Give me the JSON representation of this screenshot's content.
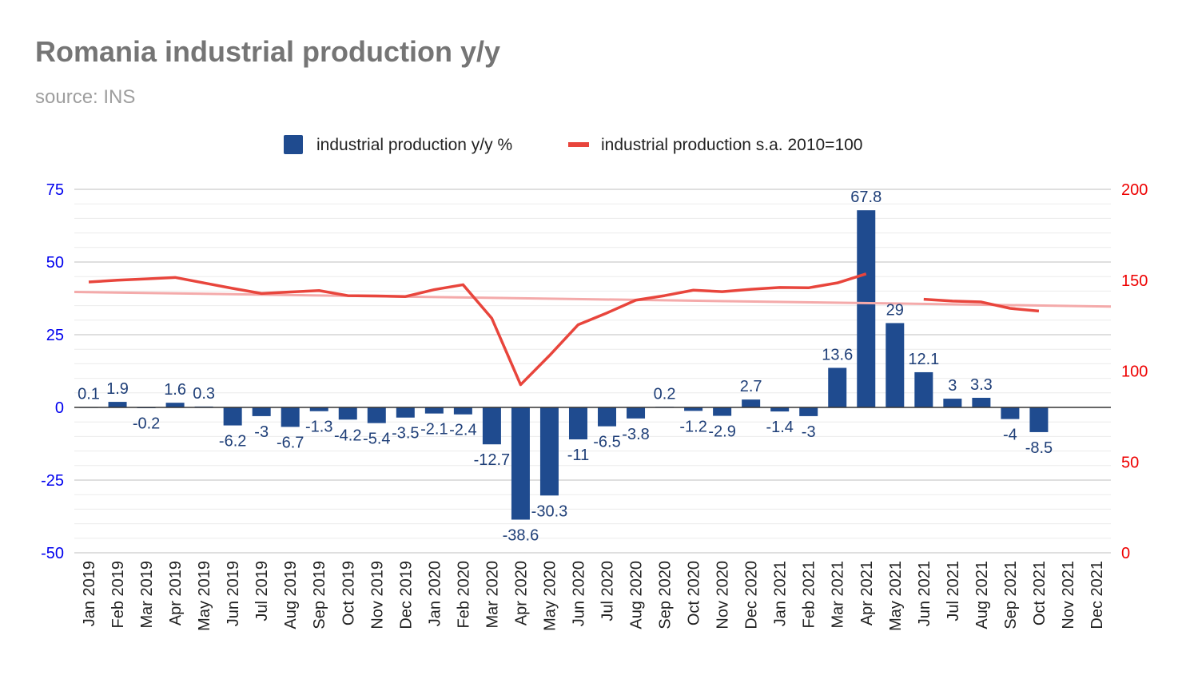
{
  "title": "Romania industrial production y/y",
  "subtitle": "source: INS",
  "chart_data": {
    "type": "bar",
    "categories": [
      "Jan 2019",
      "Feb 2019",
      "Mar 2019",
      "Apr 2019",
      "May 2019",
      "Jun 2019",
      "Jul 2019",
      "Aug 2019",
      "Sep 2019",
      "Oct 2019",
      "Nov 2019",
      "Dec 2019",
      "Jan 2020",
      "Feb 2020",
      "Mar 2020",
      "Apr 2020",
      "May 2020",
      "Jun 2020",
      "Jul 2020",
      "Aug 2020",
      "Sep 2020",
      "Oct 2020",
      "Nov 2020",
      "Dec 2020",
      "Jan 2021",
      "Feb 2021",
      "Mar 2021",
      "Apr 2021",
      "May 2021",
      "Jun 2021",
      "Jul 2021",
      "Aug 2021",
      "Sep 2021",
      "Oct 2021",
      "Nov 2021",
      "Dec 2021"
    ],
    "series": [
      {
        "name": "industrial production y/y %",
        "type": "bar",
        "axis": "left",
        "color": "#1f4b8f",
        "values": [
          0.1,
          1.9,
          -0.2,
          1.6,
          0.3,
          -6.2,
          -3,
          -6.7,
          -1.3,
          -4.2,
          -5.4,
          -3.5,
          -2.1,
          -2.4,
          -12.7,
          -38.6,
          -30.3,
          -11,
          -6.5,
          -3.8,
          0.2,
          -1.2,
          -2.9,
          2.7,
          -1.4,
          -3,
          13.6,
          67.8,
          29,
          12.1,
          3,
          3.3,
          -4,
          -8.5,
          null,
          null
        ]
      },
      {
        "name": "industrial production s.a. 2010=100",
        "type": "line",
        "axis": "right",
        "color": "#e8453c",
        "values": [
          149,
          150,
          150.7,
          151.5,
          148.5,
          145.5,
          142.7,
          143.5,
          144.3,
          141.5,
          141.3,
          141,
          144.8,
          147.5,
          129,
          92.5,
          108.5,
          125.5,
          132,
          139,
          141.5,
          144.5,
          143.7,
          145,
          146,
          145.8,
          148.5,
          153.5,
          null,
          139.5,
          138.5,
          138,
          134.5,
          133,
          null,
          null
        ]
      }
    ],
    "trendline": {
      "series": "industrial production s.a. 2010=100",
      "start": 143.5,
      "end": 135.5,
      "color": "#f4aaaa"
    },
    "y_left": {
      "ylim": [
        -50,
        75
      ],
      "ticks": [
        -50,
        -25,
        0,
        25,
        50,
        75
      ],
      "tick_labels": [
        "-50",
        "-25",
        "0",
        "25",
        "50",
        "75"
      ],
      "color": "#0000ee"
    },
    "y_right": {
      "ylim": [
        0,
        200
      ],
      "ticks": [
        0,
        50,
        100,
        150,
        200
      ],
      "tick_labels": [
        "0",
        "50",
        "100",
        "150",
        "200"
      ],
      "color": "#ee0000"
    },
    "legend": "top-center",
    "grid": true
  }
}
